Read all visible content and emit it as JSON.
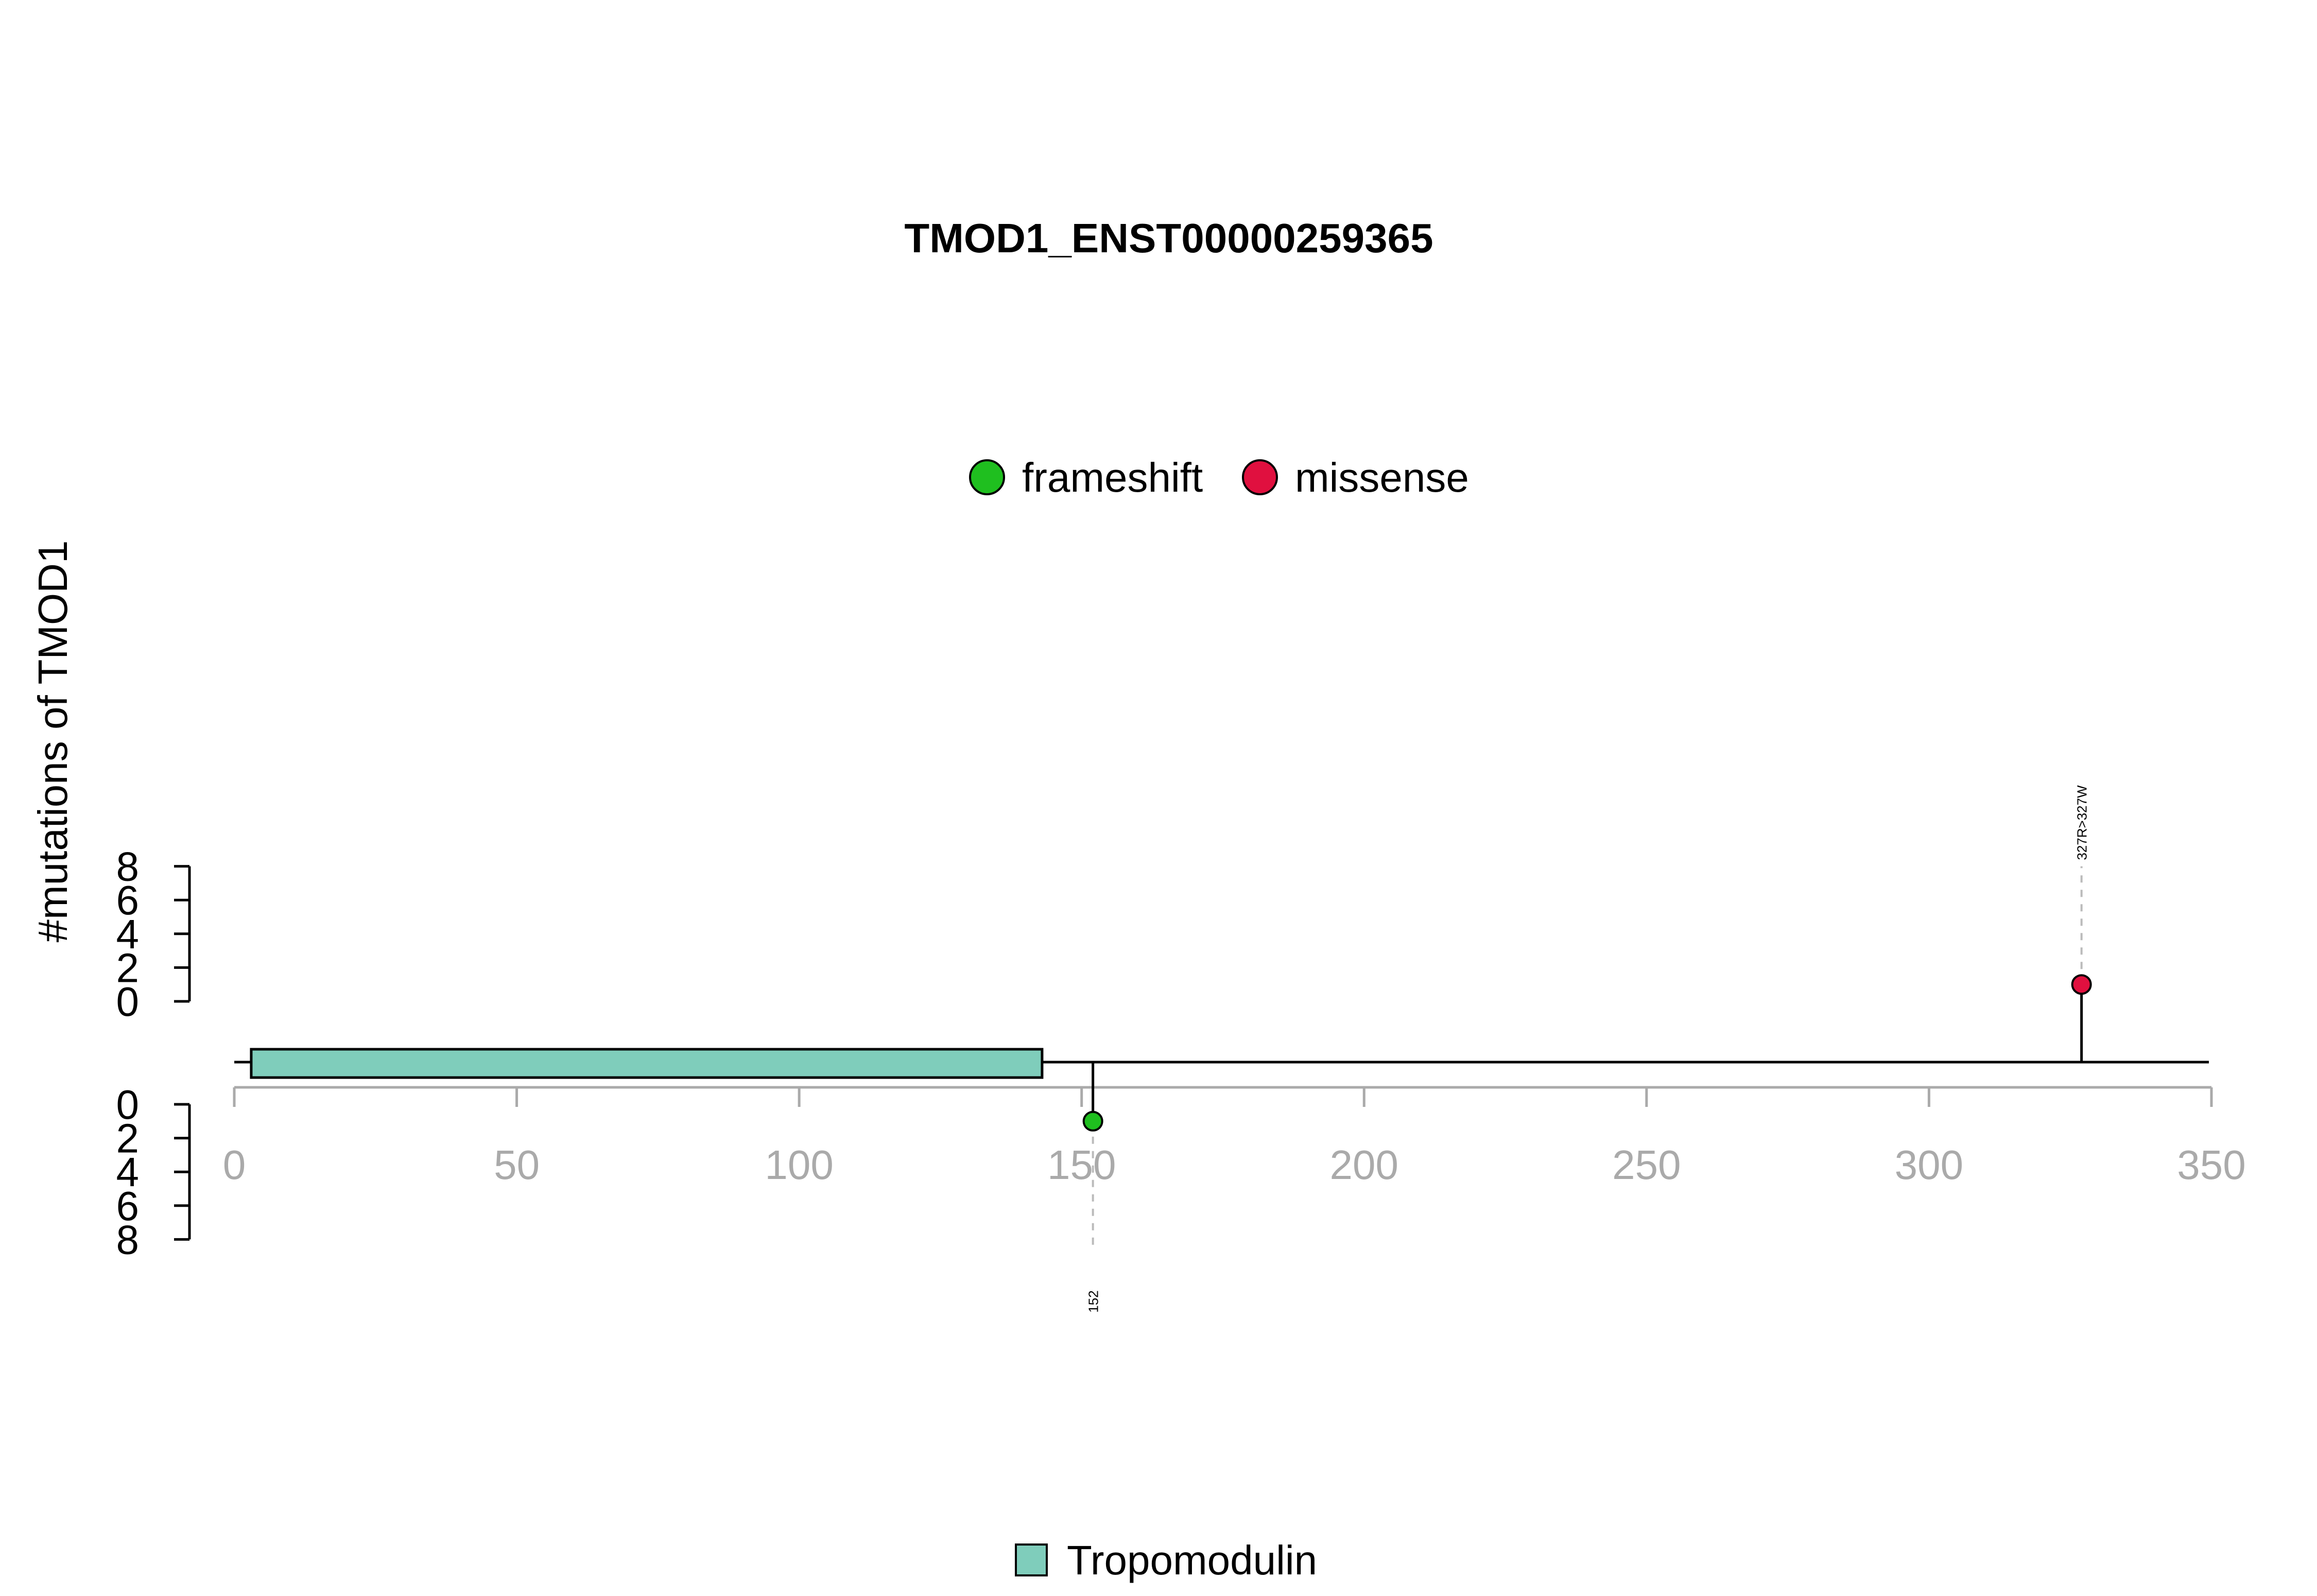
{
  "chart_data": {
    "type": "lollipop",
    "title": "TMOD1_ENST00000259365",
    "ylabel": "#mutations of TMOD1",
    "xlim": [
      0,
      350
    ],
    "x_ticks": [
      0,
      50,
      100,
      150,
      200,
      250,
      300,
      350
    ],
    "y_ticks": [
      0,
      2,
      4,
      6,
      8
    ],
    "ylim": [
      0,
      8
    ],
    "legend_mutations": [
      {
        "label": "frameshift",
        "color": "#1FBF1F"
      },
      {
        "label": "missense",
        "color": "#E0103F"
      }
    ],
    "legend_domains": [
      {
        "label": "Tropomodulin",
        "color": "#7FCDBB"
      }
    ],
    "domains": [
      {
        "name": "Tropomodulin",
        "start": 3,
        "end": 143,
        "color": "#7FCDBB"
      }
    ],
    "mutations": [
      {
        "position": 327,
        "count": 1,
        "type": "missense",
        "label": "327R>327W",
        "side": "top",
        "color": "#E0103F"
      },
      {
        "position": 152,
        "count": 1,
        "type": "frameshift",
        "label": "152",
        "side": "bottom",
        "color": "#1FBF1F"
      }
    ]
  }
}
